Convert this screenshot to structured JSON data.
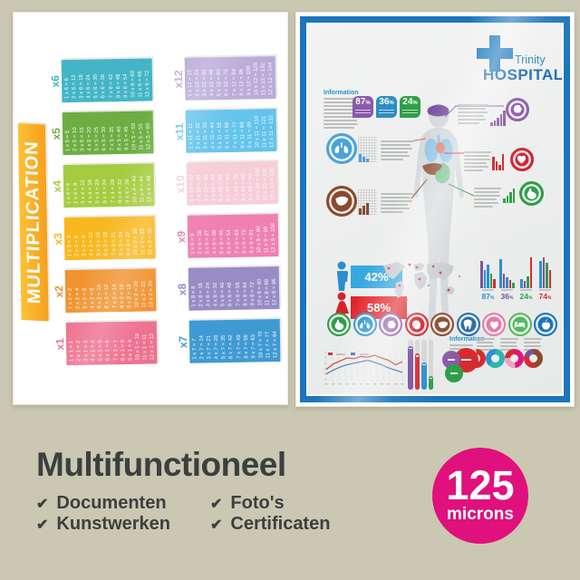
{
  "scene": {
    "background_color": "#cac8b2"
  },
  "mult_poster": {
    "title": "MULTIPLICATION",
    "tables": [
      {
        "label": "x1",
        "color": "#ee6f8d",
        "eqs": [
          "1 x 1 = 1",
          "2 x 1 = 2",
          "3 x 1 = 3",
          "4 x 1 = 4",
          "5 x 1 = 5",
          "6 x 1 = 6",
          "7 x 1 = 7",
          "8 x 1 = 8",
          "9 x 1 = 9",
          "10 x 1 = 10",
          "11 x 1 = 11",
          "12 x 1 = 12"
        ]
      },
      {
        "label": "x2",
        "color": "#f0922f",
        "eqs": [
          "1 x 2 = 2",
          "2 x 2 = 4",
          "3 x 2 = 6",
          "4 x 2 = 8",
          "5 x 2 = 10",
          "6 x 2 = 12",
          "7 x 2 = 14",
          "8 x 2 = 16",
          "9 x 2 = 18",
          "10 x 2 = 20",
          "11 x 2 = 22",
          "12 x 2 = 24"
        ]
      },
      {
        "label": "x3",
        "color": "#f8b71d",
        "eqs": [
          "1 x 3 = 3",
          "2 x 3 = 6",
          "3 x 3 = 9",
          "4 x 3 = 12",
          "5 x 3 = 15",
          "6 x 3 = 18",
          "7 x 3 = 21",
          "8 x 3 = 24",
          "9 x 3 = 27",
          "10 x 3 = 30",
          "11 x 3 = 33",
          "12 x 3 = 36"
        ]
      },
      {
        "label": "x4",
        "color": "#a5cc40",
        "eqs": [
          "1 x 4 = 4",
          "2 x 4 = 8",
          "3 x 4 = 12",
          "4 x 4 = 16",
          "5 x 4 = 20",
          "6 x 4 = 24",
          "7 x 4 = 28",
          "8 x 4 = 32",
          "9 x 4 = 36",
          "10 x 4 = 40",
          "11 x 4 = 44",
          "12 x 4 = 48"
        ]
      },
      {
        "label": "x5",
        "color": "#6dae42",
        "eqs": [
          "1 x 5 = 5",
          "2 x 5 = 10",
          "3 x 5 = 15",
          "4 x 5 = 20",
          "5 x 5 = 25",
          "6 x 5 = 30",
          "7 x 5 = 35",
          "8 x 5 = 40",
          "9 x 5 = 45",
          "10 x 5 = 50",
          "11 x 5 = 55",
          "12 x 5 = 60"
        ]
      },
      {
        "label": "x6",
        "color": "#43b5c6",
        "eqs": [
          "1 x 6 = 6",
          "2 x 6 = 12",
          "3 x 6 = 18",
          "4 x 6 = 24",
          "5 x 6 = 30",
          "6 x 6 = 36",
          "7 x 6 = 42",
          "8 x 6 = 48",
          "9 x 6 = 54",
          "10 x 6 = 60",
          "11 x 6 = 66",
          "12 x 6 = 72"
        ]
      },
      {
        "label": "x7",
        "color": "#3f9ad4",
        "eqs": [
          "1 x 7 = 7",
          "2 x 7 = 14",
          "3 x 7 = 21",
          "4 x 7 = 28",
          "5 x 7 = 35",
          "6 x 7 = 42",
          "7 x 7 = 49",
          "8 x 7 = 56",
          "9 x 7 = 63",
          "10 x 7 = 70",
          "11 x 7 = 77",
          "12 x 7 = 84"
        ]
      },
      {
        "label": "x8",
        "color": "#988cc5",
        "eqs": [
          "1 x 8 = 8",
          "2 x 8 = 16",
          "3 x 8 = 24",
          "4 x 8 = 32",
          "5 x 8 = 40",
          "6 x 8 = 48",
          "7 x 8 = 56",
          "8 x 8 = 64",
          "9 x 8 = 72",
          "10 x 8 = 80",
          "11 x 8 = 88",
          "12 x 8 = 96"
        ]
      },
      {
        "label": "x9",
        "color": "#ef80b2",
        "eqs": [
          "1 x 9 = 9",
          "2 x 9 = 18",
          "3 x 9 = 27",
          "4 x 9 = 36",
          "5 x 9 = 45",
          "6 x 9 = 54",
          "7 x 9 = 63",
          "8 x 9 = 72",
          "9 x 9 = 81",
          "10 x 9 = 90",
          "11 x 9 = 99",
          "12 x 9 = 108"
        ]
      },
      {
        "label": "x10",
        "color": "#f6cdd9",
        "eqs": [
          "1 x 10 = 10",
          "2 x 10 = 20",
          "3 x 10 = 30",
          "4 x 10 = 40",
          "5 x 10 = 50",
          "6 x 10 = 60",
          "7 x 10 = 70",
          "8 x 10 = 80",
          "9 x 10 = 90",
          "10 x 10 = 100",
          "11 x 10 = 110",
          "12 x 10 = 120"
        ]
      },
      {
        "label": "x11",
        "color": "#62c3ec",
        "eqs": [
          "1 x 11 = 11",
          "2 x 11 = 22",
          "3 x 11 = 33",
          "4 x 11 = 44",
          "5 x 11 = 55",
          "6 x 11 = 66",
          "7 x 11 = 77",
          "8 x 11 = 88",
          "9 x 11 = 99",
          "10 x 11 = 110",
          "11 x 11 = 121",
          "12 x 11 = 132"
        ]
      },
      {
        "label": "x12",
        "color": "#b9abd8",
        "eqs": [
          "1 x 12 = 12",
          "2 x 12 = 24",
          "3 x 12 = 36",
          "4 x 12 = 48",
          "5 x 12 = 60",
          "6 x 12 = 72",
          "7 x 12 = 84",
          "8 x 12 = 96",
          "9 x 12 = 108",
          "10 x 12 = 120",
          "11 x 12 = 132",
          "12 x 12 = 144"
        ]
      }
    ]
  },
  "hospital_poster": {
    "frame_color": "#1b75bc",
    "hospital_name": "Trinity",
    "hospital_title": "HOSPITAL",
    "information_label": "Information",
    "stat_badges": [
      {
        "value": "87",
        "unit": "%",
        "color": "#8a5aa8"
      },
      {
        "value": "36",
        "unit": "%",
        "color": "#2f8dc0"
      },
      {
        "value": "24",
        "unit": "%",
        "color": "#2f9e49"
      }
    ],
    "organ_callouts": [
      {
        "organ": "brain",
        "color": "#8a5aa8",
        "bars": [
          4,
          6,
          9,
          13,
          17
        ]
      },
      {
        "organ": "lungs",
        "color": "#4ba3d8",
        "bars": [
          9,
          6,
          4
        ]
      },
      {
        "organ": "heart",
        "color": "#cf2330",
        "bars": [
          15,
          10,
          6,
          18
        ]
      },
      {
        "organ": "liver",
        "color": "#8a4a2c",
        "bars": [
          7,
          10,
          13
        ]
      },
      {
        "organ": "stomach",
        "color": "#2f9e49",
        "bars": [
          5,
          8,
          12,
          16
        ]
      }
    ],
    "gender_stats": [
      {
        "gender": "male",
        "value": "42%",
        "box_color": "#35a8e0",
        "icon_color": "#2a8fd0"
      },
      {
        "gender": "female",
        "value": "58%",
        "box_color": "#e02529",
        "icon_color": "#d6222a"
      }
    ],
    "bar_groups": [
      {
        "label": "87",
        "unit": "%",
        "label_color": "#2a8fd0",
        "bars": [
          [
            "#7b52a1",
            30
          ],
          [
            "#2a8fd0",
            20
          ],
          [
            "#2a8fd0",
            26
          ],
          [
            "#2f9e49",
            16
          ],
          [
            "#d62b2f",
            10
          ]
        ]
      },
      {
        "label": "36",
        "unit": "%",
        "label_color": "#7b52a1",
        "bars": [
          [
            "#2a8fd0",
            32
          ],
          [
            "#7b52a1",
            16
          ],
          [
            "#2a8fd0",
            12
          ],
          [
            "#d62b2f",
            9
          ],
          [
            "#2f9e49",
            6
          ]
        ]
      },
      {
        "label": "24",
        "unit": "%",
        "label_color": "#2f9e49",
        "bars": [
          [
            "#2a8fd0",
            10
          ],
          [
            "#7b52a1",
            8
          ],
          [
            "#2f9e49",
            13
          ],
          [
            "#d62b2f",
            34
          ]
        ]
      },
      {
        "label": "74",
        "unit": "%",
        "label_color": "#d62b2f",
        "bars": [
          [
            "#2a8fd0",
            30
          ],
          [
            "#7b52a1",
            34
          ],
          [
            "#2f9e49",
            28
          ],
          [
            "#d62b2f",
            20
          ]
        ]
      }
    ],
    "icon_row": [
      {
        "name": "stomach",
        "color": "#2f9e49"
      },
      {
        "name": "lungs",
        "color": "#2a8fd0"
      },
      {
        "name": "brain",
        "color": "#8a5aa8"
      },
      {
        "name": "heart-organ",
        "color": "#d6222a"
      },
      {
        "name": "liver",
        "color": "#8a4a2c"
      },
      {
        "name": "tooth",
        "color": "#2a6fa8"
      },
      {
        "name": "heart",
        "color": "#e87ba8"
      },
      {
        "name": "bed",
        "color": "#57b860"
      },
      {
        "name": "apple",
        "color": "#1b75bc"
      }
    ],
    "line_chart": {
      "red_color": "#cf3a30",
      "blue_color": "#3a6ea8",
      "red": [
        3.2,
        4.6,
        5.4,
        6.2,
        6.0,
        6.6,
        6.4,
        6.9,
        6.2,
        5.6,
        4.4,
        5.2
      ],
      "blue": [
        2.0,
        3.0,
        3.8,
        4.4,
        4.8,
        5.2,
        5.6,
        5.0,
        4.4,
        3.6,
        3.0,
        2.4
      ]
    },
    "column_chart": [
      [
        "#7b52a1",
        88
      ],
      [
        "#d62b2f",
        72
      ],
      [
        "#2a8fd0",
        55
      ],
      [
        "#2f9e49",
        28
      ]
    ],
    "bubbles": [
      [
        "#8a5aa8",
        20
      ],
      [
        "#d62b2f",
        27
      ],
      [
        "#2f9e49",
        20
      ]
    ],
    "donuts": [
      [
        [
          "#d62b2f",
          50
        ],
        [
          "#e87ba8",
          28
        ],
        [
          "#c9c9c9",
          22
        ]
      ],
      [
        [
          "#2bb5b0",
          62
        ],
        [
          "#2a8fd0",
          38
        ]
      ],
      [
        [
          "#e0137f",
          48
        ],
        [
          "#f0a0c0",
          28
        ],
        [
          "#d62b2f",
          24
        ]
      ],
      [
        [
          "#8a4a2c",
          46
        ],
        [
          "#d62b2f",
          34
        ],
        [
          "#7b52a1",
          20
        ]
      ]
    ]
  },
  "footer": {
    "title": "Multifunctioneel",
    "checkmark": "✔",
    "features": [
      "Documenten",
      "Kunstwerken",
      "Foto's",
      "Certificaten"
    ],
    "badge_value": "125",
    "badge_unit": "microns",
    "badge_color": "#e0107c"
  }
}
